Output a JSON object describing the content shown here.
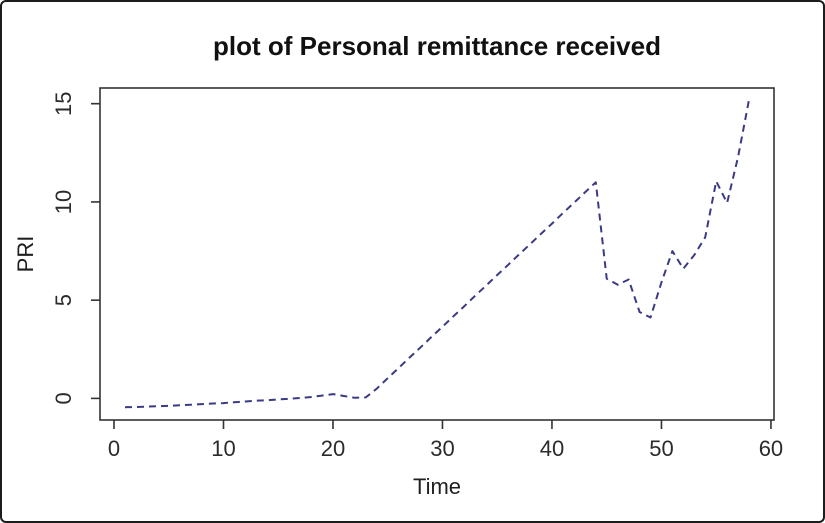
{
  "figure": {
    "background": "#ffffff",
    "border_color": "#1c1c1c",
    "axis_color": "#333333",
    "text_color": "#1f1f1f"
  },
  "chart_data": {
    "type": "line",
    "title": "plot of Personal remittance received",
    "xlabel": "Time",
    "ylabel": "PRI",
    "x_ticks": [
      0,
      10,
      20,
      30,
      40,
      50,
      60
    ],
    "y_ticks": [
      0,
      5,
      10,
      15
    ],
    "xlim": [
      -1.28,
      60.28
    ],
    "ylim": [
      -1.1,
      15.8
    ],
    "grid": false,
    "legend": false,
    "series": [
      {
        "name": "PRI",
        "line_style": "dashed",
        "color": "#3a3a85",
        "x": [
          1,
          2,
          3,
          4,
          5,
          6,
          7,
          8,
          9,
          10,
          11,
          12,
          13,
          14,
          15,
          16,
          17,
          18,
          19,
          20,
          21,
          22,
          23,
          24,
          25,
          26,
          27,
          28,
          29,
          30,
          31,
          32,
          33,
          34,
          35,
          36,
          37,
          38,
          39,
          40,
          41,
          42,
          43,
          44,
          45,
          46,
          47,
          48,
          49,
          50,
          51,
          52,
          53,
          54,
          55,
          56,
          57,
          58
        ],
        "values": [
          -0.45,
          -0.44,
          -0.42,
          -0.4,
          -0.38,
          -0.35,
          -0.32,
          -0.29,
          -0.26,
          -0.24,
          -0.2,
          -0.16,
          -0.12,
          -0.09,
          -0.05,
          -0.02,
          0.02,
          0.07,
          0.14,
          0.22,
          0.12,
          0.03,
          0.05,
          0.5,
          1.03,
          1.55,
          2.08,
          2.6,
          3.13,
          3.65,
          4.18,
          4.7,
          5.23,
          5.75,
          6.28,
          6.8,
          7.33,
          7.85,
          8.38,
          8.9,
          9.43,
          9.95,
          10.48,
          11.0,
          6.1,
          5.78,
          6.05,
          4.4,
          4.12,
          5.9,
          7.5,
          6.6,
          7.3,
          8.2,
          11.05,
          9.95,
          12.3,
          15.2
        ]
      }
    ]
  }
}
